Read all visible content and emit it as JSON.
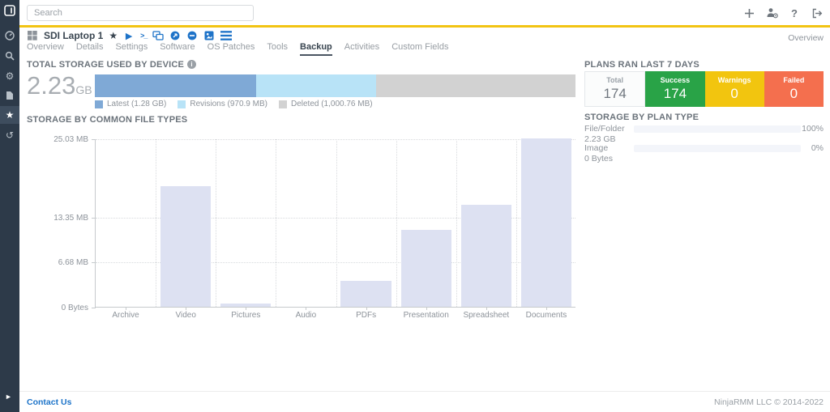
{
  "topbar": {
    "search_placeholder": "Search",
    "icons": [
      "add-icon",
      "user-admin-icon",
      "help-icon",
      "logout-icon"
    ]
  },
  "sidebar": {
    "icons": [
      "ninja-logo",
      "dashboard-icon",
      "search-icon",
      "gear-icon",
      "document-icon",
      "star-icon",
      "history-icon",
      "expand-icon"
    ],
    "active_icon": "star-icon",
    "bg_color": "#2d3a49"
  },
  "overview_link": "Overview",
  "device": {
    "name": "SDI Laptop 1",
    "action_icons": [
      "os-windows-icon",
      "star-icon",
      "play-icon",
      "terminal-icon",
      "remote-screens-icon",
      "navigate-circle-icon",
      "suspend-circle-icon",
      "rdp-icon",
      "menu-list-icon"
    ],
    "terminal_glyph": ">_",
    "tabs": [
      {
        "label": "Overview",
        "active": false
      },
      {
        "label": "Details",
        "active": false
      },
      {
        "label": "Settings",
        "active": false
      },
      {
        "label": "Software",
        "active": false
      },
      {
        "label": "OS Patches",
        "active": false
      },
      {
        "label": "Tools",
        "active": false
      },
      {
        "label": "Backup",
        "active": true
      },
      {
        "label": "Activities",
        "active": false
      },
      {
        "label": "Custom Fields",
        "active": false
      }
    ]
  },
  "total_storage": {
    "title": "TOTAL STORAGE USED BY DEVICE",
    "value": "2.23",
    "unit": "GB",
    "segments": [
      {
        "name": "latest",
        "label": "Latest (1.28 GB)",
        "pct": 33.5,
        "color": "#7fa9d6"
      },
      {
        "name": "revisions",
        "label": "Revisions (970.9 MB)",
        "pct": 25.0,
        "color": "#b8e3f7"
      },
      {
        "name": "deleted",
        "label": "Deleted (1,000.76 MB)",
        "pct": 41.5,
        "color": "#d2d2d2"
      }
    ]
  },
  "plans": {
    "title": "PLANS RAN LAST 7 DAYS",
    "cells": [
      {
        "label": "Total",
        "value": "174",
        "bg": "#fbfcfc",
        "label_color": "#9aa1a8",
        "num_color": "#6f767e"
      },
      {
        "label": "Success",
        "value": "174",
        "bg": "#29a347",
        "label_color": "#ffffff",
        "num_color": "#ffffff"
      },
      {
        "label": "Warnings",
        "value": "0",
        "bg": "#f2c50f",
        "label_color": "#ffffff",
        "num_color": "#ffffff"
      },
      {
        "label": "Failed",
        "value": "0",
        "bg": "#f46f4e",
        "label_color": "#ffffff",
        "num_color": "#ffffff"
      }
    ]
  },
  "plan_type": {
    "title": "STORAGE BY PLAN TYPE",
    "rows": [
      {
        "label": "File/Folder",
        "size": "2.23 GB",
        "pct": 100,
        "pct_label": "100%"
      },
      {
        "label": "Image",
        "size": "0 Bytes",
        "pct": 0,
        "pct_label": "0%"
      }
    ]
  },
  "chart_data": {
    "type": "bar",
    "title": "STORAGE BY COMMON FILE TYPES",
    "categories": [
      "Archive",
      "Video",
      "Pictures",
      "Audio",
      "PDFs",
      "Presentation",
      "Spreadsheet",
      "Documents"
    ],
    "values": [
      0,
      17.9,
      0.5,
      0,
      3.9,
      11.4,
      15.2,
      25.03
    ],
    "unit": "MB",
    "ylim": [
      0,
      25.03
    ],
    "yticks": [
      {
        "label": "25.03 MB",
        "value": 25.03
      },
      {
        "label": "13.35 MB",
        "value": 13.35
      },
      {
        "label": "6.68 MB",
        "value": 6.68
      },
      {
        "label": "0 Bytes",
        "value": 0
      }
    ],
    "bar_color": "#dde1f2",
    "grid": "dotted",
    "legend_position": "none"
  },
  "footer": {
    "contact": "Contact Us",
    "copyright": "NinjaRMM LLC © 2014-2022"
  }
}
